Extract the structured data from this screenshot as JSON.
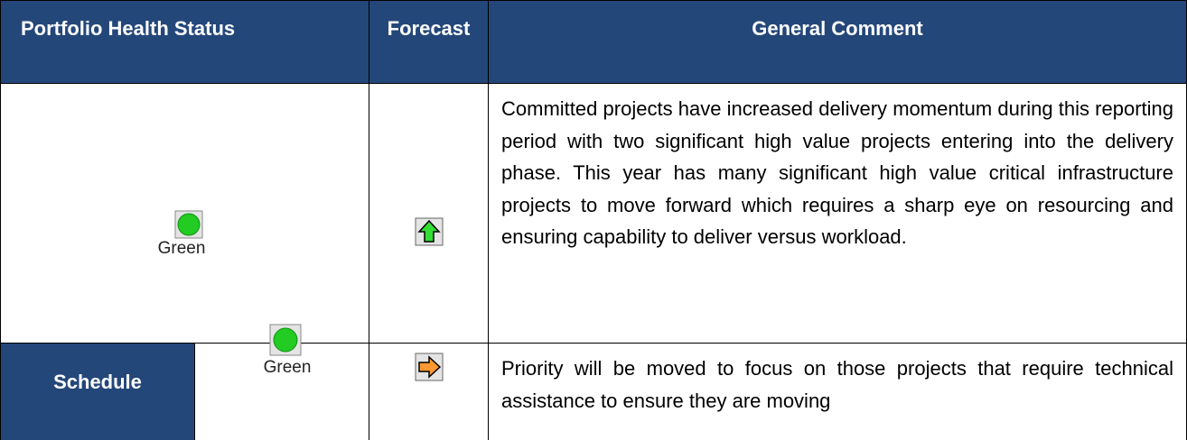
{
  "table": {
    "header": [
      "Portfolio Health Status",
      "Forecast",
      "General Comment"
    ],
    "rows": [
      {
        "status": "Green",
        "comment": "Committed projects have increased delivery momentum during this reporting period with two significant high value projects entering into the delivery phase. This year has many significant high value critical infrastructure projects to move forward which requires a sharp eye on resourcing and ensuring capability to deliver versus workload."
      },
      {
        "label": "Schedule",
        "status": "Green",
        "comment": "Priority will be moved to focus on those projects that require technical assistance to ensure they are moving"
      }
    ]
  }
}
